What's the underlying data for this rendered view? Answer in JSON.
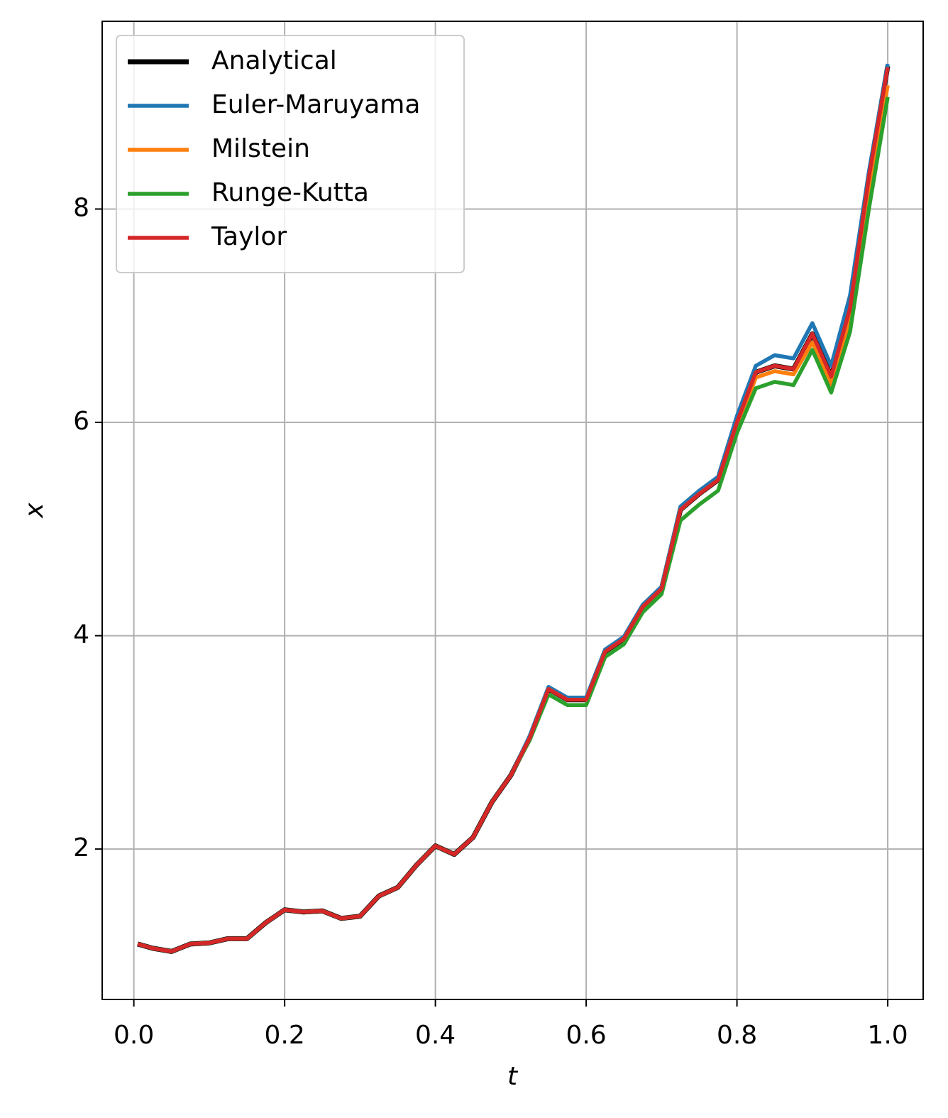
{
  "chart_data": {
    "type": "line",
    "xlabel": "t",
    "ylabel": "x",
    "x": [
      0.005,
      0.025,
      0.05,
      0.075,
      0.1,
      0.125,
      0.15,
      0.175,
      0.2,
      0.225,
      0.25,
      0.275,
      0.3,
      0.325,
      0.35,
      0.375,
      0.4,
      0.425,
      0.45,
      0.475,
      0.5,
      0.525,
      0.55,
      0.575,
      0.6,
      0.625,
      0.65,
      0.675,
      0.7,
      0.725,
      0.75,
      0.775,
      0.8,
      0.825,
      0.85,
      0.875,
      0.9,
      0.925,
      0.95,
      0.975,
      1.0
    ],
    "series": [
      {
        "name": "Analytical",
        "color": "#000000",
        "values": [
          1.11,
          1.07,
          1.04,
          1.11,
          1.12,
          1.16,
          1.16,
          1.31,
          1.43,
          1.41,
          1.42,
          1.35,
          1.37,
          1.56,
          1.64,
          1.85,
          2.03,
          1.95,
          2.11,
          2.44,
          2.69,
          3.04,
          3.5,
          3.4,
          3.4,
          3.85,
          3.97,
          4.27,
          4.44,
          5.18,
          5.33,
          5.46,
          6.0,
          6.47,
          6.53,
          6.5,
          6.83,
          6.43,
          7.07,
          8.3,
          9.34
        ]
      },
      {
        "name": "Euler-Maruyama",
        "color": "#1f77b4",
        "values": [
          1.11,
          1.07,
          1.04,
          1.11,
          1.12,
          1.16,
          1.16,
          1.31,
          1.43,
          1.41,
          1.42,
          1.35,
          1.37,
          1.56,
          1.64,
          1.85,
          2.03,
          1.95,
          2.11,
          2.44,
          2.69,
          3.06,
          3.52,
          3.42,
          3.42,
          3.87,
          3.99,
          4.29,
          4.46,
          5.21,
          5.36,
          5.49,
          6.06,
          6.53,
          6.63,
          6.6,
          6.93,
          6.53,
          7.19,
          8.35,
          9.36
        ]
      },
      {
        "name": "Milstein",
        "color": "#ff7f0e",
        "values": [
          1.11,
          1.07,
          1.04,
          1.11,
          1.12,
          1.16,
          1.16,
          1.31,
          1.43,
          1.41,
          1.42,
          1.35,
          1.37,
          1.56,
          1.64,
          1.85,
          2.03,
          1.95,
          2.11,
          2.44,
          2.69,
          3.04,
          3.5,
          3.4,
          3.4,
          3.85,
          3.97,
          4.27,
          4.44,
          5.18,
          5.33,
          5.46,
          5.95,
          6.42,
          6.48,
          6.45,
          6.75,
          6.35,
          6.97,
          8.15,
          9.16
        ]
      },
      {
        "name": "Runge-Kutta",
        "color": "#2ca02c",
        "values": [
          1.11,
          1.07,
          1.04,
          1.11,
          1.12,
          1.16,
          1.16,
          1.31,
          1.43,
          1.41,
          1.42,
          1.35,
          1.37,
          1.56,
          1.64,
          1.85,
          2.03,
          1.95,
          2.11,
          2.44,
          2.69,
          3.02,
          3.45,
          3.35,
          3.35,
          3.8,
          3.92,
          4.22,
          4.39,
          5.08,
          5.23,
          5.36,
          5.9,
          6.32,
          6.38,
          6.35,
          6.68,
          6.28,
          6.85,
          8.0,
          9.05
        ]
      },
      {
        "name": "Taylor",
        "color": "#d62728",
        "values": [
          1.11,
          1.07,
          1.04,
          1.11,
          1.12,
          1.16,
          1.16,
          1.31,
          1.43,
          1.41,
          1.42,
          1.35,
          1.37,
          1.56,
          1.64,
          1.85,
          2.03,
          1.95,
          2.11,
          2.44,
          2.69,
          3.04,
          3.5,
          3.4,
          3.4,
          3.85,
          3.97,
          4.27,
          4.44,
          5.18,
          5.33,
          5.46,
          6.0,
          6.47,
          6.53,
          6.5,
          6.83,
          6.43,
          7.07,
          8.3,
          9.33
        ]
      }
    ],
    "xlim": [
      -0.042,
      1.047
    ],
    "ylim": [
      0.59,
      9.76
    ],
    "xticks": [
      {
        "value": 0,
        "label": "0.0"
      },
      0.2,
      0.4,
      0.6,
      0.8,
      {
        "value": 1,
        "label": "1.0"
      }
    ],
    "yticks": [
      2,
      4,
      6,
      8
    ],
    "grid": true,
    "legend": "upper left"
  }
}
